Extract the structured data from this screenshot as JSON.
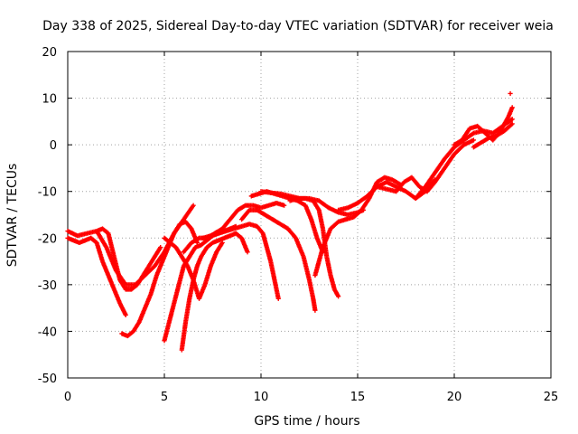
{
  "chart_data": {
    "type": "scatter",
    "title": "Day 338 of 2025, Sidereal Day-to-day VTEC variation (SDTVAR) for receiver weia",
    "xlabel": "GPS time / hours",
    "ylabel": "SDTVAR / TECUs",
    "xlim": [
      0,
      25
    ],
    "ylim": [
      -50,
      20
    ],
    "xticks": [
      0,
      5,
      10,
      15,
      20,
      25
    ],
    "yticks": [
      -50,
      -40,
      -30,
      -20,
      -10,
      0,
      10,
      20
    ],
    "grid": true,
    "marker": "plus",
    "color": "#ff0000",
    "series": [
      {
        "name": "track-1",
        "x": [
          0.0,
          0.5,
          1.0,
          1.5,
          2.0,
          2.5,
          3.0,
          3.5,
          4.0,
          4.5,
          5.0,
          5.5,
          6.0,
          6.5
        ],
        "y": [
          -18.5,
          -19.5,
          -19.0,
          -18.5,
          -22,
          -27,
          -30,
          -30,
          -28,
          -26,
          -23,
          -19,
          -16,
          -13
        ]
      },
      {
        "name": "track-2",
        "x": [
          0.0,
          0.3,
          0.6,
          0.9,
          1.2,
          1.5,
          1.8,
          2.1,
          2.4,
          2.7,
          3.0
        ],
        "y": [
          -20,
          -20.5,
          -21,
          -20.5,
          -20,
          -21,
          -25,
          -28,
          -31,
          -34,
          -36.5
        ]
      },
      {
        "name": "track-3",
        "x": [
          1.5,
          1.8,
          2.1,
          2.4,
          2.7,
          3.0,
          3.3,
          3.6,
          3.9,
          4.2,
          4.5,
          4.8
        ],
        "y": [
          -18.5,
          -18,
          -19,
          -24,
          -29,
          -31,
          -31,
          -30,
          -28,
          -26,
          -24,
          -22
        ]
      },
      {
        "name": "track-4",
        "x": [
          2.8,
          3.1,
          3.4,
          3.7,
          4.0,
          4.3,
          4.6,
          4.9,
          5.2,
          5.5,
          5.8,
          6.1,
          6.4,
          6.7
        ],
        "y": [
          -40.5,
          -41,
          -40,
          -38,
          -35,
          -32,
          -28,
          -25,
          -22,
          -19,
          -17,
          -16.5,
          -18,
          -21
        ]
      },
      {
        "name": "track-5",
        "x": [
          5.0,
          5.3,
          5.6,
          5.9,
          6.2,
          6.5,
          6.8,
          7.1,
          7.4,
          7.7,
          8.0
        ],
        "y": [
          -20,
          -21,
          -22,
          -24,
          -26,
          -29,
          -33,
          -30,
          -26,
          -23,
          -21
        ]
      },
      {
        "name": "track-6",
        "x": [
          5.0,
          5.25,
          5.5,
          5.75,
          6.0,
          6.3,
          6.6,
          6.9,
          7.2,
          7.5,
          7.8,
          8.1,
          8.4,
          8.7
        ],
        "y": [
          -42,
          -38,
          -34,
          -30,
          -26,
          -24,
          -22,
          -21.5,
          -20.5,
          -19.5,
          -19,
          -18.5,
          -18,
          -17.5
        ]
      },
      {
        "name": "track-7",
        "x": [
          5.9,
          6.1,
          6.3,
          6.5,
          6.7,
          6.9,
          7.2,
          7.5,
          7.8,
          8.1,
          8.4,
          8.7,
          9.0,
          9.3
        ],
        "y": [
          -44,
          -38,
          -33,
          -29,
          -26,
          -24,
          -22,
          -21,
          -20.5,
          -20,
          -19.5,
          -19,
          -20,
          -23
        ]
      },
      {
        "name": "track-8",
        "x": [
          6.0,
          6.4,
          6.8,
          7.2,
          7.6,
          8.0,
          8.4,
          8.8,
          9.2,
          9.6,
          10.0,
          10.4,
          10.8,
          11.2
        ],
        "y": [
          -23,
          -21,
          -20,
          -20,
          -19,
          -18,
          -16,
          -14,
          -13,
          -13,
          -13.5,
          -13,
          -12.5,
          -13
        ]
      },
      {
        "name": "track-9",
        "x": [
          7.0,
          7.4,
          7.8,
          8.2,
          8.6,
          9.0,
          9.4,
          9.8,
          10.1,
          10.3,
          10.5,
          10.7,
          10.9
        ],
        "y": [
          -20,
          -19.5,
          -19,
          -18.5,
          -18,
          -17.5,
          -17,
          -17.5,
          -19,
          -22,
          -25,
          -29,
          -33
        ]
      },
      {
        "name": "track-10",
        "x": [
          9.0,
          9.4,
          9.8,
          10.2,
          10.6,
          11.0,
          11.4,
          11.8,
          12.2,
          12.5,
          12.7,
          12.8
        ],
        "y": [
          -16,
          -14,
          -14,
          -15,
          -16,
          -17,
          -18,
          -20,
          -24,
          -29,
          -33,
          -35.5
        ]
      },
      {
        "name": "track-11",
        "x": [
          9.5,
          9.9,
          10.3,
          10.7,
          11.1,
          11.5,
          11.9,
          12.3,
          12.6,
          12.9,
          13.2
        ],
        "y": [
          -11,
          -10.5,
          -10,
          -10.5,
          -11,
          -11.5,
          -12,
          -13,
          -16,
          -20,
          -23
        ]
      },
      {
        "name": "track-12",
        "x": [
          10.0,
          10.5,
          11.0,
          11.5,
          12.0,
          12.5,
          13.0,
          13.5,
          14.0,
          14.5,
          15.0,
          15.3
        ],
        "y": [
          -10,
          -10.3,
          -10.5,
          -11,
          -11.5,
          -11.5,
          -12,
          -13.5,
          -14.5,
          -15,
          -14.5,
          -14
        ]
      },
      {
        "name": "track-13",
        "x": [
          11.5,
          11.9,
          12.3,
          12.7,
          13.0,
          13.2,
          13.4,
          13.6,
          13.8,
          14.0
        ],
        "y": [
          -12,
          -11.5,
          -11.5,
          -12,
          -14,
          -18,
          -24,
          -28,
          -31,
          -32.5
        ]
      },
      {
        "name": "track-14",
        "x": [
          12.8,
          13.2,
          13.6,
          14.0,
          14.4,
          14.8,
          15.2,
          15.6,
          16.0,
          16.4,
          16.8,
          17.2
        ],
        "y": [
          -28,
          -22,
          -18,
          -16.5,
          -16,
          -15.5,
          -14,
          -11.5,
          -8,
          -7,
          -7.5,
          -8.5
        ]
      },
      {
        "name": "track-15",
        "x": [
          14.0,
          14.5,
          15.0,
          15.5,
          16.0,
          16.5,
          17.0,
          17.5,
          18.0,
          18.5,
          19.0
        ],
        "y": [
          -14,
          -13.5,
          -12.5,
          -11,
          -9,
          -8,
          -9,
          -10,
          -11.5,
          -10,
          -7.5
        ]
      },
      {
        "name": "track-16",
        "x": [
          16.0,
          16.5,
          17.0,
          17.4,
          17.8,
          18.2,
          18.6,
          19.0,
          19.5,
          20.0,
          20.5,
          21.0
        ],
        "y": [
          -9,
          -9.5,
          -10,
          -8,
          -7,
          -9,
          -10,
          -8,
          -5,
          -2,
          0,
          1
        ]
      },
      {
        "name": "track-17",
        "x": [
          18.0,
          18.5,
          19.0,
          19.5,
          20.0,
          20.5,
          21.0,
          21.5,
          22.0,
          22.5,
          23.0
        ],
        "y": [
          -11.5,
          -9,
          -6,
          -3,
          -0.5,
          1,
          2.5,
          3,
          2.5,
          4,
          5.5
        ]
      },
      {
        "name": "track-18",
        "x": [
          20.0,
          20.4,
          20.8,
          21.2,
          21.6,
          22.0,
          22.4,
          22.8,
          23.0
        ],
        "y": [
          0,
          1,
          3.5,
          4,
          2.5,
          1,
          3,
          6,
          8
        ]
      },
      {
        "name": "track-19",
        "x": [
          21.0,
          21.4,
          21.8,
          22.2,
          22.6,
          23.0
        ],
        "y": [
          -0.5,
          0.5,
          1.5,
          2,
          3,
          4.5
        ]
      },
      {
        "name": "outlier",
        "x": [
          22.9
        ],
        "y": [
          11
        ]
      }
    ]
  }
}
